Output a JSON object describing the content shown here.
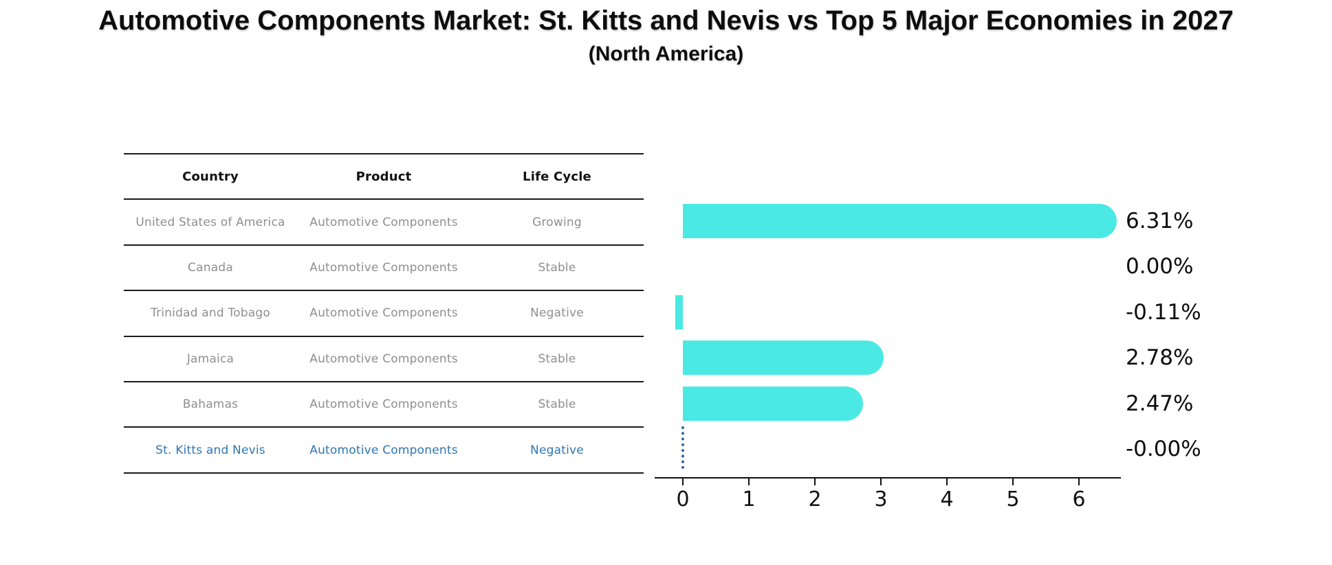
{
  "title": "Automotive Components Market: St. Kitts and Nevis vs Top 5 Major Economies in 2027",
  "subtitle": "(North America)",
  "table": {
    "headers": [
      "Country",
      "Product",
      "Life Cycle"
    ],
    "rows": [
      {
        "country": "United States of America",
        "product": "Automotive Components",
        "life_cycle": "Growing",
        "highlighted": false
      },
      {
        "country": "Canada",
        "product": "Automotive Components",
        "life_cycle": "Stable",
        "highlighted": false
      },
      {
        "country": "Trinidad and Tobago",
        "product": "Automotive Components",
        "life_cycle": "Negative",
        "highlighted": false
      },
      {
        "country": "Jamaica",
        "product": "Automotive Components",
        "life_cycle": "Stable",
        "highlighted": false
      },
      {
        "country": "Bahamas",
        "product": "Automotive Components",
        "life_cycle": "Stable",
        "highlighted": false
      },
      {
        "country": "St. Kitts and Nevis",
        "product": "Automotive Components",
        "life_cycle": "Negative",
        "highlighted": true
      }
    ]
  },
  "chart_data": {
    "type": "bar",
    "orientation": "horizontal",
    "title": "Automotive Components Market: St. Kitts and Nevis vs Top 5 Major Economies in 2027",
    "subtitle": "(North America)",
    "categories": [
      "United States of America",
      "Canada",
      "Trinidad and Tobago",
      "Jamaica",
      "Bahamas",
      "St. Kitts and Nevis"
    ],
    "values": [
      6.31,
      0.0,
      -0.11,
      2.78,
      2.47,
      -0.0
    ],
    "value_labels": [
      "6.31%",
      "0.00%",
      "-0.11%",
      "2.78%",
      "2.47%",
      "-0.00%"
    ],
    "xticks": [
      0,
      1,
      2,
      3,
      4,
      5,
      6
    ],
    "xlim": [
      -0.43,
      6.63
    ],
    "grid": false,
    "legend": false,
    "highlight_index": 5,
    "zero_marker_index": 5
  },
  "colors": {
    "bar": "#4BE9E4",
    "highlight_text": "#2E75B6",
    "row_text": "#8E8E8E",
    "header_text": "#111111",
    "axis": "#111111",
    "value_label": "#0D0D0D",
    "zero_marker": "#2E62A6"
  }
}
